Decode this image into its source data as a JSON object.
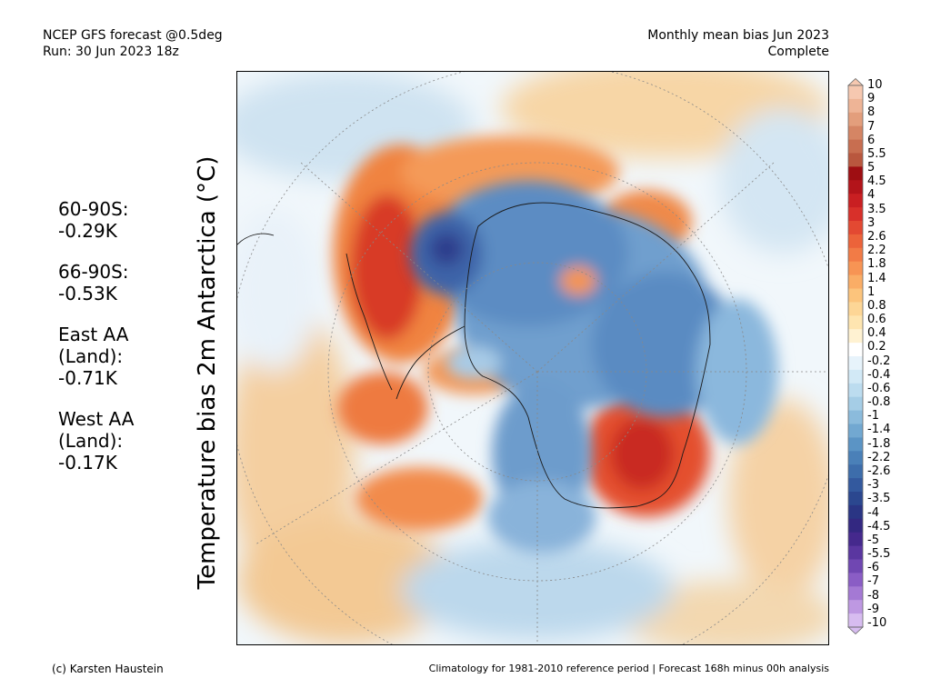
{
  "header": {
    "model": "NCEP GFS forecast @0.5deg",
    "run": "Run: 30 Jun 2023 18z",
    "product": "Monthly mean bias Jun 2023",
    "status": "Complete"
  },
  "axis_label": "Temperature bias 2m Antarctica (°C)",
  "stats": [
    {
      "lines": [
        "60-90S:",
        " -0.29K"
      ]
    },
    {
      "lines": [
        "66-90S:",
        " -0.53K"
      ]
    },
    {
      "lines": [
        "East AA",
        " (Land):",
        " -0.71K"
      ]
    },
    {
      "lines": [
        "West AA",
        " (Land):",
        " -0.17K"
      ]
    }
  ],
  "colorbar": {
    "labels": [
      "10",
      "9",
      "8",
      "7",
      "6",
      "5.5",
      "5",
      "4.5",
      "4",
      "3.5",
      "3",
      "2.6",
      "2.2",
      "1.8",
      "1.4",
      "1",
      "0.8",
      "0.6",
      "0.4",
      "0.2",
      "-0.2",
      "-0.4",
      "-0.6",
      "-0.8",
      "-1",
      "-1.4",
      "-1.8",
      "-2.2",
      "-2.6",
      "-3",
      "-3.5",
      "-4",
      "-4.5",
      "-5",
      "-5.5",
      "-6",
      "-7",
      "-8",
      "-9",
      "-10"
    ],
    "colors": [
      "#f6c8b0",
      "#eeb496",
      "#e39e7c",
      "#d58564",
      "#c86e50",
      "#b9573e",
      "#9e0e12",
      "#b3141a",
      "#c91f22",
      "#d8302a",
      "#e34932",
      "#ec633a",
      "#f27b46",
      "#f79454",
      "#faad66",
      "#fcc47c",
      "#fdd696",
      "#fee5b0",
      "#fff2d2",
      "#ffffff",
      "#e7f3fb",
      "#d2e9f6",
      "#bcdcef",
      "#a5cde6",
      "#8bbbdc",
      "#72a8d1",
      "#5b94c5",
      "#4a80b8",
      "#3d6dab",
      "#33599e",
      "#2b478f",
      "#2a3584",
      "#332881",
      "#45298d",
      "#5a36a0",
      "#7047b2",
      "#8a5dc5",
      "#a479d4",
      "#be98e2",
      "#d7bcf0"
    ]
  },
  "footer": {
    "credit": "(c) Karsten Haustein",
    "note": "Climatology for 1981-2010 reference period | Forecast 168h minus 00h analysis"
  }
}
